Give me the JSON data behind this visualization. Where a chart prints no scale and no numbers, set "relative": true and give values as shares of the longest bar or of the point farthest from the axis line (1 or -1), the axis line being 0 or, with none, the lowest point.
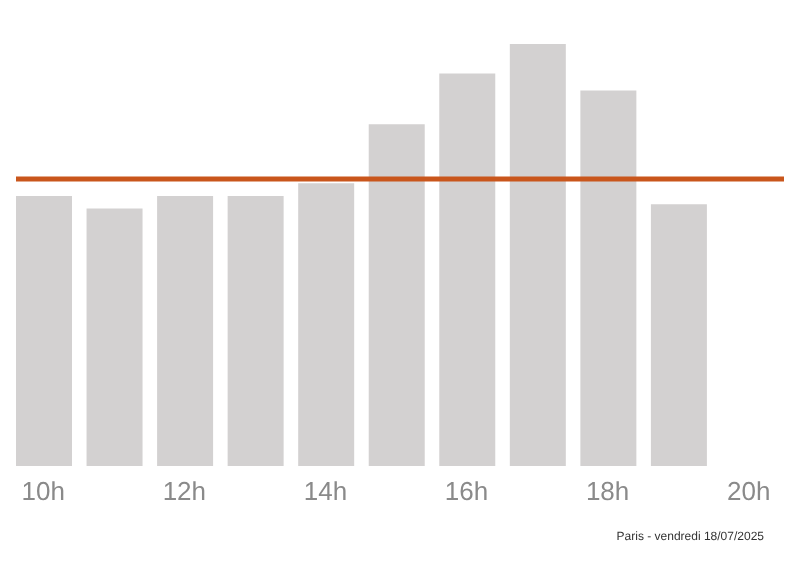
{
  "chart_data": {
    "type": "bar",
    "relative": true,
    "categories": [
      "10h",
      null,
      "12h",
      null,
      "14h",
      null,
      "16h",
      null,
      "18h",
      null,
      "20h"
    ],
    "values": [
      0.64,
      0.61,
      0.64,
      0.64,
      0.67,
      0.81,
      0.93,
      1,
      0.89,
      0.62,
      null
    ],
    "color": "#d3d1d1",
    "ref_lines": [
      {
        "axis": "y",
        "value": 0.68,
        "color": "#c9561c"
      }
    ],
    "annotations": [
      "Paris - vendredi 18/07/2025"
    ],
    "grid": false
  }
}
